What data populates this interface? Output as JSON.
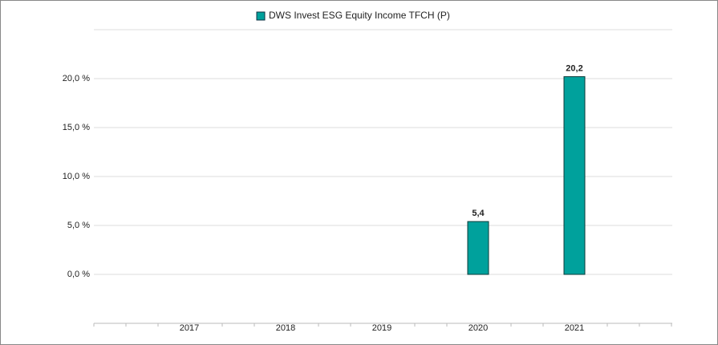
{
  "chart_data": {
    "type": "bar",
    "categories": [
      "2017",
      "2018",
      "2019",
      "2020",
      "2021"
    ],
    "series": [
      {
        "name": "DWS Invest ESG Equity Income  TFCH (P)",
        "color": "#00a19c",
        "values": [
          null,
          null,
          null,
          5.4,
          20.2
        ],
        "value_labels": [
          null,
          null,
          null,
          "5,4",
          "20,2"
        ]
      }
    ],
    "ylim": [
      -5,
      25
    ],
    "yticks": [
      {
        "value": 0,
        "label": "0,0 %"
      },
      {
        "value": 5,
        "label": "5,0 %"
      },
      {
        "value": 10,
        "label": "10,0 %"
      },
      {
        "value": 15,
        "label": "15,0 %"
      },
      {
        "value": 20,
        "label": "20,0 %"
      }
    ],
    "grid": true,
    "legend": "top"
  }
}
